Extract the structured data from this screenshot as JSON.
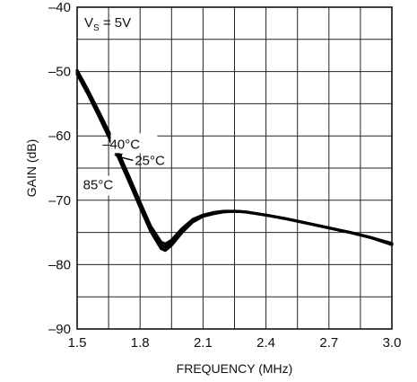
{
  "chart_data": {
    "type": "line",
    "xlabel": "FREQUENCY (MHz)",
    "ylabel": "GAIN (dB)",
    "xlim": [
      1.5,
      3.0
    ],
    "ylim": [
      -90,
      -40
    ],
    "xticks": [
      1.5,
      1.8,
      2.1,
      2.4,
      2.7,
      3.0
    ],
    "xtick_labels": [
      "1.5",
      "1.8",
      "2.1",
      "2.4",
      "2.7",
      "3.0"
    ],
    "yticks": [
      -90,
      -80,
      -70,
      -60,
      -50,
      -40
    ],
    "ytick_labels": [
      "–90",
      "–80",
      "–70",
      "–60",
      "–50",
      "–40"
    ],
    "x_minor_step": 0.15,
    "y_minor_step": 5,
    "grid": true,
    "condition": {
      "main": "V",
      "sub": "S",
      "rest": " = 5V"
    },
    "series": [
      {
        "name": "–40°C",
        "x": [
          1.5,
          1.55,
          1.6,
          1.65,
          1.7,
          1.75,
          1.8,
          1.85,
          1.9,
          1.92,
          1.95,
          2.0,
          2.05,
          2.1,
          2.15,
          2.2,
          2.25,
          2.3,
          2.4,
          2.5,
          2.6,
          2.7,
          2.8,
          2.9,
          3.0
        ],
        "y": [
          -49.8,
          -52.8,
          -56.0,
          -59.3,
          -62.8,
          -66.5,
          -70.3,
          -74.0,
          -76.5,
          -76.8,
          -76.2,
          -74.4,
          -73.0,
          -72.3,
          -71.9,
          -71.7,
          -71.7,
          -71.8,
          -72.3,
          -72.9,
          -73.6,
          -74.3,
          -75.0,
          -75.8,
          -76.7
        ]
      },
      {
        "name": "25°C",
        "x": [
          1.5,
          1.55,
          1.6,
          1.65,
          1.7,
          1.75,
          1.8,
          1.85,
          1.9,
          1.92,
          1.95,
          2.0,
          2.05,
          2.1,
          2.15,
          2.2,
          2.25,
          2.3,
          2.4,
          2.5,
          2.6,
          2.7,
          2.8,
          2.9,
          3.0
        ],
        "y": [
          -50.1,
          -53.1,
          -56.3,
          -59.7,
          -63.2,
          -66.9,
          -70.7,
          -74.4,
          -77.0,
          -77.3,
          -76.6,
          -74.7,
          -73.2,
          -72.4,
          -72.0,
          -71.8,
          -71.7,
          -71.8,
          -72.3,
          -72.9,
          -73.6,
          -74.3,
          -75.0,
          -75.8,
          -76.8
        ]
      },
      {
        "name": "85°C",
        "x": [
          1.5,
          1.55,
          1.6,
          1.65,
          1.7,
          1.75,
          1.8,
          1.85,
          1.9,
          1.92,
          1.95,
          2.0,
          2.05,
          2.1,
          2.15,
          2.2,
          2.25,
          2.3,
          2.4,
          2.5,
          2.6,
          2.7,
          2.8,
          2.9,
          3.0
        ],
        "y": [
          -50.4,
          -53.4,
          -56.7,
          -60.1,
          -63.6,
          -67.3,
          -71.1,
          -74.8,
          -77.5,
          -77.8,
          -77.0,
          -75.0,
          -73.4,
          -72.5,
          -72.1,
          -71.8,
          -71.7,
          -71.8,
          -72.3,
          -72.9,
          -73.6,
          -74.3,
          -75.0,
          -75.8,
          -76.9
        ]
      }
    ],
    "annotations": [
      {
        "text": "–40°C",
        "x": 1.71,
        "y": -62.0
      },
      {
        "text": "25°C",
        "x": 1.775,
        "y": -64.5,
        "arrow_to_x": 1.675,
        "arrow_to_y": -62.9
      },
      {
        "text": "85°C",
        "x": 1.6,
        "y": -68.3
      }
    ]
  }
}
